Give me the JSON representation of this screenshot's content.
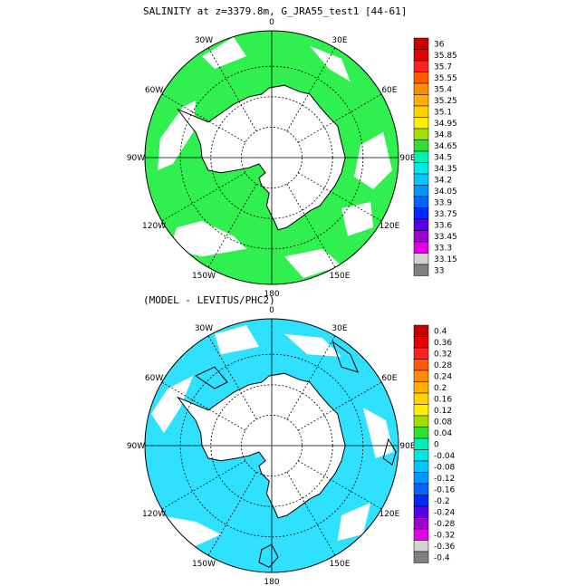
{
  "panel1": {
    "title": "SALINITY at z=3379.8m, G_JRA55_test1 [44-61]",
    "lon_labels": [
      "0",
      "30E",
      "60E",
      "90E",
      "120E",
      "150E",
      "180",
      "150W",
      "120W",
      "90W",
      "60W",
      "30W"
    ],
    "colorbar": {
      "labels": [
        "36",
        "35.85",
        "35.7",
        "35.55",
        "35.4",
        "35.25",
        "35.1",
        "34.95",
        "34.8",
        "34.65",
        "34.5",
        "34.35",
        "34.2",
        "34.05",
        "33.9",
        "33.75",
        "33.6",
        "33.45",
        "33.3",
        "33.15",
        "33"
      ],
      "colors": [
        "#c80000",
        "#e60000",
        "#ff2020",
        "#ff5a00",
        "#ff8c00",
        "#ffb000",
        "#ffd200",
        "#fff000",
        "#a0e000",
        "#30e030",
        "#00f0b0",
        "#00e8e8",
        "#00c8ff",
        "#0096ff",
        "#0064ff",
        "#0028ff",
        "#5a00e6",
        "#a000d2",
        "#e600e6",
        "#d2d2d2",
        "#808080"
      ]
    }
  },
  "panel2": {
    "title": "(MODEL - LEVITUS/PHC2)",
    "lon_labels": [
      "0",
      "30E",
      "60E",
      "90E",
      "120E",
      "150E",
      "180",
      "150W",
      "120W",
      "90W",
      "60W",
      "30W"
    ],
    "colorbar": {
      "labels": [
        "0.4",
        "0.36",
        "0.32",
        "0.28",
        "0.24",
        "0.2",
        "0.16",
        "0.12",
        "0.08",
        "0.04",
        "0",
        "-0.04",
        "-0.08",
        "-0.12",
        "-0.16",
        "-0.2",
        "-0.24",
        "-0.28",
        "-0.32",
        "-0.36",
        "-0.4"
      ],
      "colors": [
        "#c80000",
        "#e60000",
        "#ff2020",
        "#ff5a00",
        "#ff8c00",
        "#ffb000",
        "#ffd200",
        "#fff000",
        "#a0e000",
        "#30e030",
        "#00f0b0",
        "#00e8e8",
        "#00c8ff",
        "#0096ff",
        "#0064ff",
        "#0028ff",
        "#5a00e6",
        "#a000d2",
        "#e600e6",
        "#d2d2d2",
        "#808080"
      ]
    }
  },
  "fill": {
    "panel1": "#30f050",
    "panel2": "#30e0ff"
  }
}
